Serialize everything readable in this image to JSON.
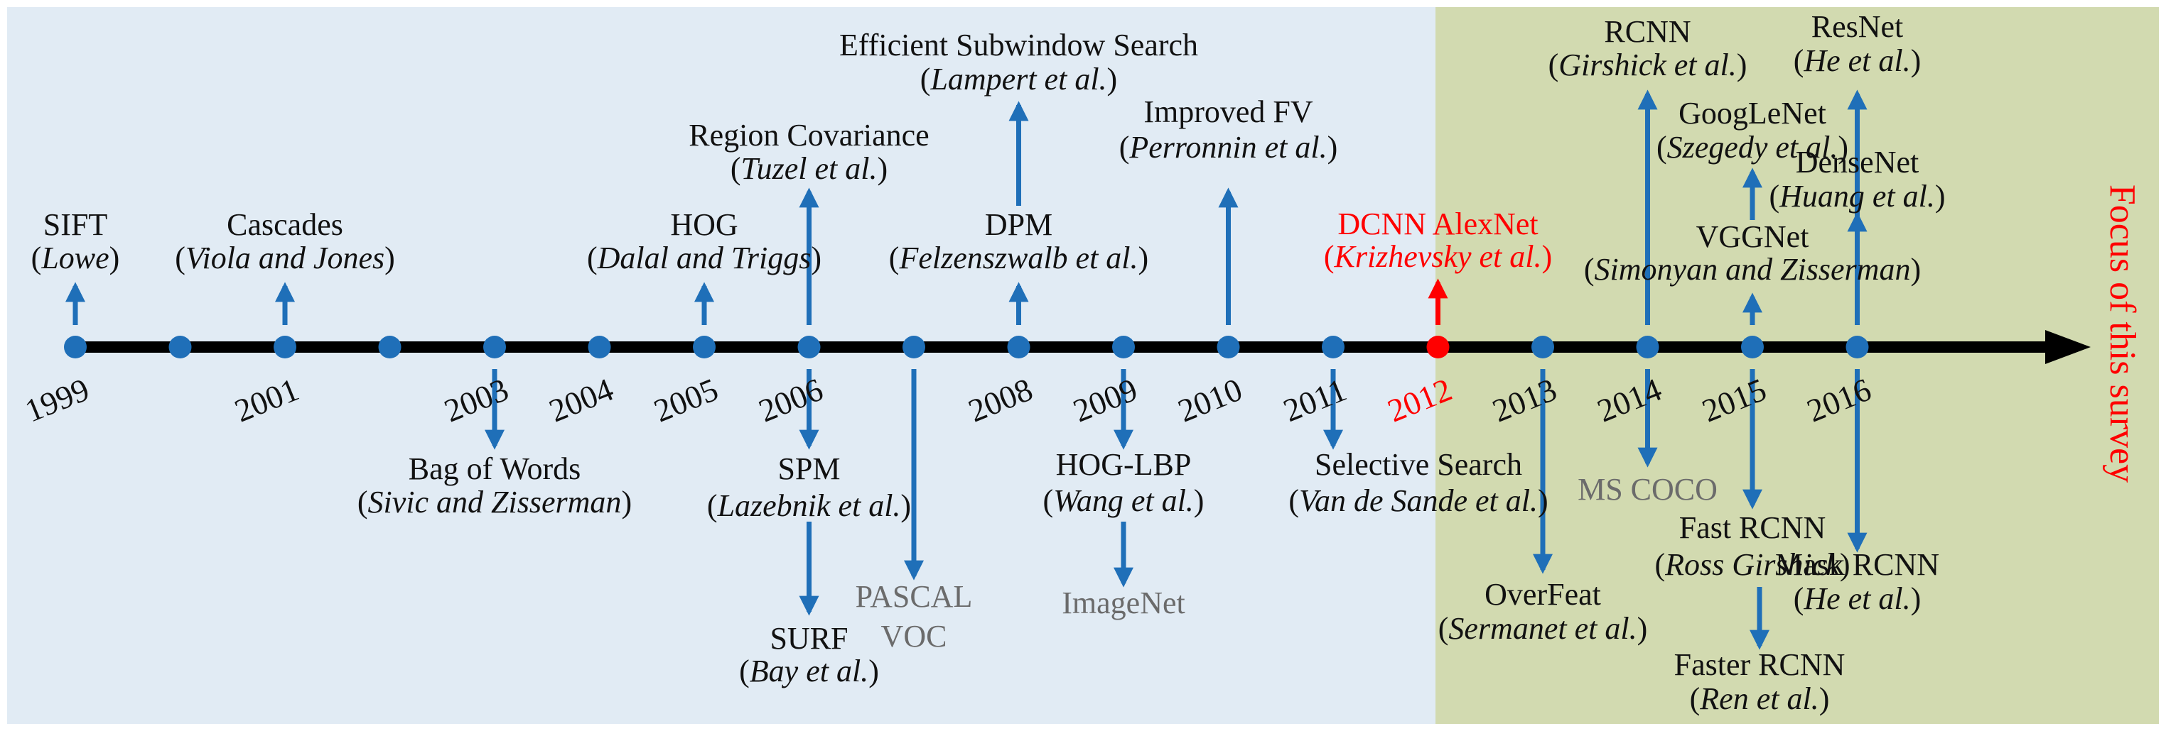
{
  "years": [
    "1999",
    "2001",
    "2003",
    "2004",
    "2005",
    "2006",
    "2008",
    "2009",
    "2010",
    "2011",
    "2012",
    "2013",
    "2014",
    "2015",
    "2016"
  ],
  "focus_label": "Focus of this survey",
  "colors": {
    "left_background": "#e1ebf4",
    "right_background": "#d2dab0",
    "timeline": "#000000",
    "arrow": "#1f6fb8",
    "highlight": "#ff0000",
    "dataset_text": "#6b6b6b",
    "text": "#111111"
  },
  "events": [
    {
      "name": "SIFT",
      "author": "Lowe",
      "year": "1999",
      "side": "above"
    },
    {
      "name": "Cascades",
      "author": "Viola and Jones",
      "year": "2001",
      "side": "above"
    },
    {
      "name": "Bag of Words",
      "author": "Sivic and Zisserman",
      "year": "2003",
      "side": "below"
    },
    {
      "name": "HOG",
      "author": "Dalal and Triggs",
      "year": "2005",
      "side": "above"
    },
    {
      "name": "Region Covariance",
      "author": "Tuzel et al.",
      "year": "2006",
      "side": "above"
    },
    {
      "name": "SPM",
      "author": "Lazebnik et al.",
      "year": "2006",
      "side": "below"
    },
    {
      "name": "SURF",
      "author": "Bay et al.",
      "year": "2006",
      "side": "below"
    },
    {
      "name": "PASCAL VOC",
      "type": "dataset",
      "year": "2007",
      "side": "below"
    },
    {
      "name": "Efficient Subwindow Search",
      "author": "Lampert et al.",
      "year": "2008",
      "side": "above"
    },
    {
      "name": "DPM",
      "author": "Felzenszwalb et al.",
      "year": "2008",
      "side": "above"
    },
    {
      "name": "HOG-LBP",
      "author": "Wang et al.",
      "year": "2009",
      "side": "below"
    },
    {
      "name": "ImageNet",
      "type": "dataset",
      "year": "2009",
      "side": "below"
    },
    {
      "name": "Improved FV",
      "author": "Perronnin et al.",
      "year": "2010",
      "side": "above"
    },
    {
      "name": "Selective Search",
      "author": "Van de Sande et al.",
      "year": "2011",
      "side": "below"
    },
    {
      "name": "DCNN AlexNet",
      "author": "Krizhevsky et al.",
      "year": "2012",
      "side": "above",
      "highlight": true
    },
    {
      "name": "OverFeat",
      "author": "Sermanet et al.",
      "year": "2013",
      "side": "below"
    },
    {
      "name": "RCNN",
      "author": "Girshick et al.",
      "year": "2014",
      "side": "above"
    },
    {
      "name": "MS COCO",
      "type": "dataset",
      "year": "2014",
      "side": "below"
    },
    {
      "name": "GoogLeNet",
      "author": "Szegedy et al.",
      "year": "2015",
      "side": "above"
    },
    {
      "name": "VGGNet",
      "author": "Simonyan and Zisserman",
      "year": "2015",
      "side": "above"
    },
    {
      "name": "Fast RCNN",
      "author": "Ross Girshick",
      "year": "2015",
      "side": "below"
    },
    {
      "name": "Faster RCNN",
      "author": "Ren et al.",
      "year": "2015",
      "side": "below"
    },
    {
      "name": "ResNet",
      "author": "He et al.",
      "year": "2016",
      "side": "above"
    },
    {
      "name": "DenseNet",
      "author": "Huang et al.",
      "year": "2016",
      "side": "above"
    },
    {
      "name": "Mask RCNN",
      "author": "He et al.",
      "year": "2016",
      "side": "below"
    }
  ]
}
